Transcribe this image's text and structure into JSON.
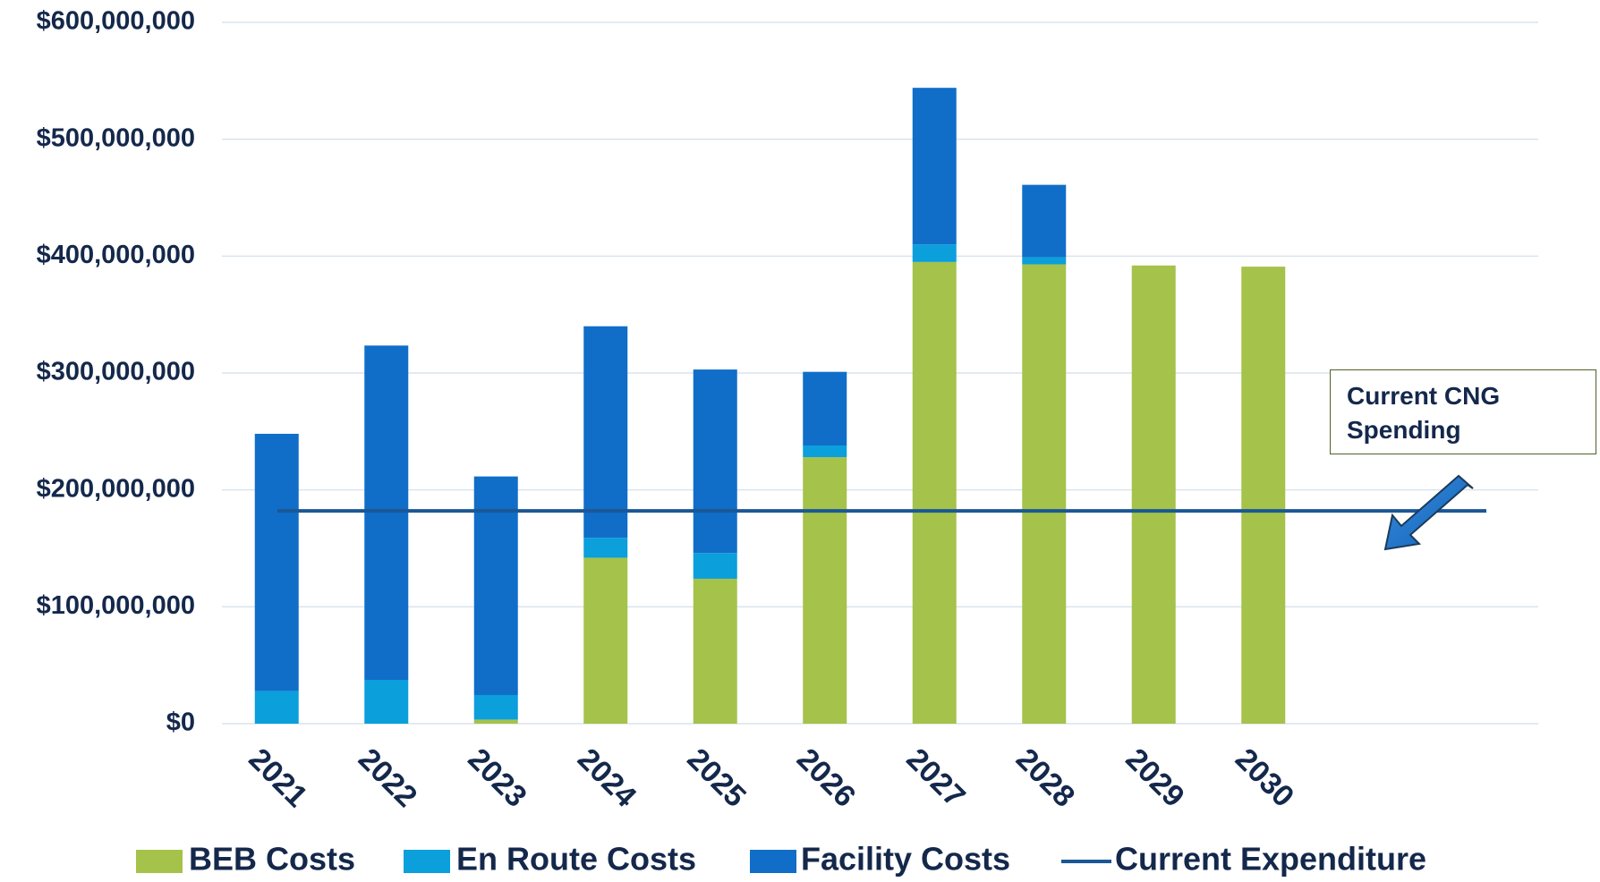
{
  "chart_data": {
    "type": "stacked_bar",
    "categories": [
      "2021",
      "2022",
      "2023",
      "2024",
      "2025",
      "2026",
      "2027",
      "2028",
      "2029",
      "2030"
    ],
    "series": [
      {
        "name": "BEB Costs",
        "color": "#a5c24b",
        "values": [
          0,
          0,
          3500000,
          142000000,
          124000000,
          228000000,
          395000000,
          393000000,
          392000000,
          391000000
        ]
      },
      {
        "name": "En Route Costs",
        "color": "#0b9fdc",
        "values": [
          28000000,
          37500000,
          21000000,
          17000000,
          22000000,
          10000000,
          15000000,
          6000000,
          0,
          0
        ]
      },
      {
        "name": "Facility Costs",
        "color": "#106ec8",
        "values": [
          220000000,
          286000000,
          187000000,
          181000000,
          157000000,
          63000000,
          134000000,
          62000000,
          0,
          0
        ]
      }
    ],
    "reference_lines": [
      {
        "name": "Current Expenditure",
        "color": "#1b5795",
        "value": 182000000
      }
    ],
    "annotation": "Current CNG Spending",
    "ylim": [
      0,
      600000000
    ],
    "yticks": [
      {
        "value": 0,
        "label": "$0"
      },
      {
        "value": 100000000,
        "label": "$100,000,000"
      },
      {
        "value": 200000000,
        "label": "$200,000,000"
      },
      {
        "value": 300000000,
        "label": "$300,000,000"
      },
      {
        "value": 400000000,
        "label": "$400,000,000"
      },
      {
        "value": 500000000,
        "label": "$500,000,000"
      },
      {
        "value": 600000000,
        "label": "$600,000,000"
      }
    ],
    "grid": true
  }
}
